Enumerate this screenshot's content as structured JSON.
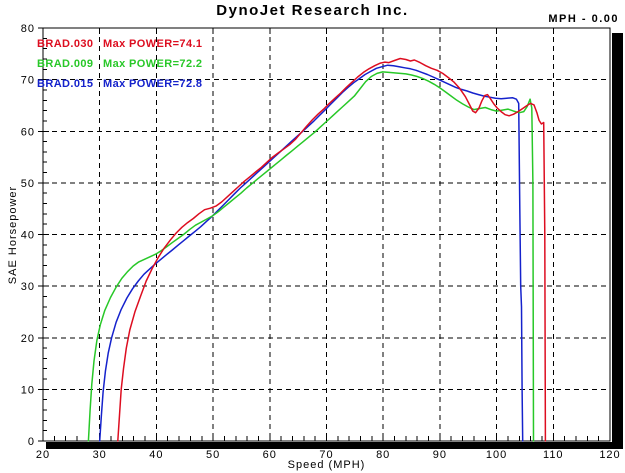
{
  "header": {
    "title": "DynoJet Research Inc.",
    "readout": "MPH - 0.00"
  },
  "legend": [
    {
      "file": "BRAD.030",
      "label": "Max POWER=74.1",
      "color": "#dd0d20"
    },
    {
      "file": "BRAD.009",
      "label": "Max POWER=72.2",
      "color": "#28c828"
    },
    {
      "file": "BRAD.015",
      "label": "Max POWER=72.8",
      "color": "#1522cc"
    }
  ],
  "chart_data": {
    "type": "line",
    "title": "DynoJet Research Inc.",
    "xlabel": "Speed (MPH)",
    "ylabel": "SAE Horsepower",
    "xlim": [
      20,
      120
    ],
    "ylim": [
      0,
      80
    ],
    "x_major_ticks": [
      20,
      30,
      40,
      50,
      60,
      70,
      80,
      90,
      100,
      110,
      120
    ],
    "y_major_ticks": [
      0,
      10,
      20,
      30,
      40,
      50,
      60,
      70,
      80
    ],
    "x_minor_step": 2,
    "y_minor_step": 2,
    "grid": "dashed",
    "legend_position": "top-left",
    "frame_color": "#000000",
    "background": "#ffffff",
    "series": [
      {
        "name": "BRAD.015",
        "max_power": 72.8,
        "color": "#1522cc",
        "points": [
          [
            30,
            0
          ],
          [
            30.3,
            5
          ],
          [
            30.6,
            9.5
          ],
          [
            31,
            13.5
          ],
          [
            31.5,
            17
          ],
          [
            32.1,
            20
          ],
          [
            32.9,
            23
          ],
          [
            33.8,
            25.5
          ],
          [
            34.8,
            27.7
          ],
          [
            35.8,
            29.5
          ],
          [
            36.8,
            31
          ],
          [
            37.8,
            32.3
          ],
          [
            38.8,
            33.3
          ],
          [
            39.8,
            34.3
          ],
          [
            40.8,
            35.2
          ],
          [
            41.8,
            36.1
          ],
          [
            42.8,
            37
          ],
          [
            43.8,
            37.9
          ],
          [
            44.8,
            38.8
          ],
          [
            45.8,
            39.7
          ],
          [
            46.8,
            40.6
          ],
          [
            47.8,
            41.5
          ],
          [
            48.8,
            42.5
          ],
          [
            49.8,
            43.5
          ],
          [
            50.8,
            44.6
          ],
          [
            51.8,
            45.7
          ],
          [
            52.8,
            46.8
          ],
          [
            53.8,
            47.9
          ],
          [
            54.8,
            49
          ],
          [
            55.8,
            50
          ],
          [
            56.8,
            51
          ],
          [
            57.8,
            52
          ],
          [
            58.8,
            53
          ],
          [
            59.8,
            54
          ],
          [
            60.8,
            55
          ],
          [
            61.8,
            56
          ],
          [
            62.8,
            57
          ],
          [
            63.8,
            58
          ],
          [
            64.8,
            59
          ],
          [
            65.8,
            60
          ],
          [
            66.8,
            61
          ],
          [
            67.8,
            62
          ],
          [
            68.8,
            63.1
          ],
          [
            69.8,
            64.2
          ],
          [
            70.8,
            65.3
          ],
          [
            71.8,
            66.4
          ],
          [
            72.8,
            67.5
          ],
          [
            73.8,
            68.5
          ],
          [
            74.8,
            69.4
          ],
          [
            75.8,
            70.2
          ],
          [
            76.8,
            71
          ],
          [
            77.8,
            71.6
          ],
          [
            78.8,
            72.2
          ],
          [
            79.8,
            72.5
          ],
          [
            80.8,
            72.8
          ],
          [
            81.8,
            72.7
          ],
          [
            82.8,
            72.5
          ],
          [
            83.8,
            72.3
          ],
          [
            84.8,
            72.1
          ],
          [
            85.8,
            71.8
          ],
          [
            86.8,
            71.4
          ],
          [
            87.8,
            71
          ],
          [
            88.8,
            70.5
          ],
          [
            89.8,
            70
          ],
          [
            90.8,
            69.5
          ],
          [
            91.8,
            69
          ],
          [
            92.8,
            68.5
          ],
          [
            93.8,
            68.1
          ],
          [
            94.8,
            67.8
          ],
          [
            95.8,
            67.4
          ],
          [
            96.8,
            67.1
          ],
          [
            97.8,
            66.8
          ],
          [
            98.8,
            66.6
          ],
          [
            99.8,
            66.4
          ],
          [
            100.8,
            66.3
          ],
          [
            101.8,
            66.4
          ],
          [
            102.8,
            66.5
          ],
          [
            103.5,
            66.2
          ],
          [
            103.9,
            65.4
          ],
          [
            104.1,
            45
          ],
          [
            104.25,
            30
          ],
          [
            104.4,
            26
          ],
          [
            104.5,
            10
          ],
          [
            104.6,
            0
          ]
        ]
      },
      {
        "name": "BRAD.009",
        "max_power": 72.2,
        "color": "#28c828",
        "points": [
          [
            28,
            0
          ],
          [
            28.3,
            6
          ],
          [
            28.6,
            11
          ],
          [
            29,
            15.5
          ],
          [
            29.5,
            19.5
          ],
          [
            30.1,
            22.5
          ],
          [
            30.9,
            25.3
          ],
          [
            31.9,
            27.8
          ],
          [
            32.9,
            29.8
          ],
          [
            33.9,
            31.5
          ],
          [
            34.9,
            32.8
          ],
          [
            35.9,
            33.9
          ],
          [
            36.9,
            34.7
          ],
          [
            37.9,
            35.2
          ],
          [
            38.9,
            35.7
          ],
          [
            39.9,
            36.2
          ],
          [
            40.9,
            36.9
          ],
          [
            41.9,
            37.7
          ],
          [
            42.9,
            38.5
          ],
          [
            43.9,
            39.3
          ],
          [
            44.9,
            40.1
          ],
          [
            45.9,
            41
          ],
          [
            46.9,
            41.8
          ],
          [
            47.9,
            42.4
          ],
          [
            48.9,
            43
          ],
          [
            49.9,
            43.6
          ],
          [
            50.9,
            44.4
          ],
          [
            51.9,
            45.3
          ],
          [
            52.9,
            46.2
          ],
          [
            53.9,
            47.1
          ],
          [
            54.9,
            48
          ],
          [
            55.9,
            49
          ],
          [
            56.9,
            49.9
          ],
          [
            57.9,
            50.8
          ],
          [
            58.9,
            51.7
          ],
          [
            59.9,
            52.6
          ],
          [
            60.9,
            53.5
          ],
          [
            61.9,
            54.4
          ],
          [
            62.9,
            55.3
          ],
          [
            63.9,
            56.2
          ],
          [
            64.9,
            57.1
          ],
          [
            65.9,
            58
          ],
          [
            66.9,
            58.9
          ],
          [
            67.9,
            59.8
          ],
          [
            68.9,
            60.8
          ],
          [
            69.9,
            61.8
          ],
          [
            70.9,
            62.8
          ],
          [
            71.9,
            63.8
          ],
          [
            72.9,
            64.8
          ],
          [
            73.9,
            65.8
          ],
          [
            74.9,
            66.8
          ],
          [
            75.9,
            68.2
          ],
          [
            76.9,
            69.6
          ],
          [
            77.9,
            70.6
          ],
          [
            78.9,
            71.2
          ],
          [
            79.9,
            71.5
          ],
          [
            81,
            71.4
          ],
          [
            82,
            71.3
          ],
          [
            83,
            71.2
          ],
          [
            84,
            71.1
          ],
          [
            85,
            70.9
          ],
          [
            86,
            70.6
          ],
          [
            87,
            70.2
          ],
          [
            88,
            69.7
          ],
          [
            89,
            69.1
          ],
          [
            90,
            68.4
          ],
          [
            91,
            67.6
          ],
          [
            92,
            66.8
          ],
          [
            93,
            66
          ],
          [
            94,
            65.3
          ],
          [
            95,
            64.7
          ],
          [
            96,
            64.2
          ],
          [
            97,
            64.4
          ],
          [
            98,
            64.6
          ],
          [
            99,
            64.2
          ],
          [
            100,
            63.9
          ],
          [
            101,
            64.1
          ],
          [
            102,
            64.3
          ],
          [
            103,
            63.9
          ],
          [
            104,
            63.6
          ],
          [
            104.8,
            63.8
          ],
          [
            105.4,
            64.8
          ],
          [
            105.9,
            66.2
          ],
          [
            106.2,
            64.5
          ],
          [
            106.4,
            50
          ],
          [
            106.5,
            0
          ]
        ]
      },
      {
        "name": "BRAD.030",
        "max_power": 74.1,
        "color": "#dd0d20",
        "points": [
          [
            33.2,
            0
          ],
          [
            33.5,
            5
          ],
          [
            33.8,
            10
          ],
          [
            34.2,
            14
          ],
          [
            34.7,
            18
          ],
          [
            35.3,
            21.5
          ],
          [
            36.2,
            25
          ],
          [
            37.2,
            28
          ],
          [
            38.2,
            31
          ],
          [
            39.3,
            33.5
          ],
          [
            40.3,
            35.5
          ],
          [
            41.4,
            37.4
          ],
          [
            42.5,
            39
          ],
          [
            43.5,
            40.3
          ],
          [
            44.5,
            41.4
          ],
          [
            45.5,
            42.3
          ],
          [
            46.5,
            43.1
          ],
          [
            47.5,
            44
          ],
          [
            48.5,
            44.8
          ],
          [
            49.5,
            45.1
          ],
          [
            50.5,
            45.5
          ],
          [
            51.5,
            46.3
          ],
          [
            52.5,
            47.3
          ],
          [
            53.5,
            48.3
          ],
          [
            54.5,
            49.3
          ],
          [
            55.5,
            50.3
          ],
          [
            56.5,
            51.2
          ],
          [
            57.5,
            52.1
          ],
          [
            58.5,
            53
          ],
          [
            59.5,
            54
          ],
          [
            60.5,
            55
          ],
          [
            61.5,
            55.8
          ],
          [
            62.5,
            56.6
          ],
          [
            63.5,
            57.4
          ],
          [
            64.5,
            58.4
          ],
          [
            65.5,
            59.7
          ],
          [
            66.5,
            61
          ],
          [
            67.5,
            62.2
          ],
          [
            68.5,
            63.3
          ],
          [
            69.5,
            64.3
          ],
          [
            70.5,
            65.4
          ],
          [
            71.5,
            66.4
          ],
          [
            72.5,
            67.4
          ],
          [
            73.5,
            68.5
          ],
          [
            74.5,
            69.5
          ],
          [
            75.5,
            70.5
          ],
          [
            76.5,
            71.4
          ],
          [
            77.5,
            72.1
          ],
          [
            78.5,
            72.7
          ],
          [
            79.5,
            73.2
          ],
          [
            80.3,
            73.4
          ],
          [
            81,
            73.3
          ],
          [
            82,
            73.7
          ],
          [
            83,
            74.1
          ],
          [
            84,
            73.9
          ],
          [
            84.8,
            73.6
          ],
          [
            85.5,
            73.8
          ],
          [
            86.5,
            73.3
          ],
          [
            87.5,
            72.7
          ],
          [
            88.5,
            72.2
          ],
          [
            89.5,
            71.8
          ],
          [
            90.5,
            71.2
          ],
          [
            91.5,
            70.4
          ],
          [
            92.5,
            69.5
          ],
          [
            93.5,
            68.3
          ],
          [
            94.5,
            66.7
          ],
          [
            95.2,
            65.2
          ],
          [
            95.8,
            63.9
          ],
          [
            96.3,
            63.6
          ],
          [
            96.9,
            64.5
          ],
          [
            97.4,
            65.9
          ],
          [
            97.9,
            66.9
          ],
          [
            98.4,
            67.1
          ],
          [
            98.9,
            66.3
          ],
          [
            99.5,
            65.3
          ],
          [
            100.1,
            64.5
          ],
          [
            100.8,
            63.8
          ],
          [
            101.5,
            63.2
          ],
          [
            102.2,
            63
          ],
          [
            103,
            63.3
          ],
          [
            103.8,
            63.8
          ],
          [
            104.6,
            64.4
          ],
          [
            105.4,
            65
          ],
          [
            106,
            65.4
          ],
          [
            106.6,
            65.1
          ],
          [
            107.1,
            63.6
          ],
          [
            107.5,
            62.1
          ],
          [
            107.9,
            61.4
          ],
          [
            108.3,
            61.7
          ],
          [
            108.5,
            40
          ],
          [
            108.6,
            0
          ]
        ]
      }
    ]
  }
}
